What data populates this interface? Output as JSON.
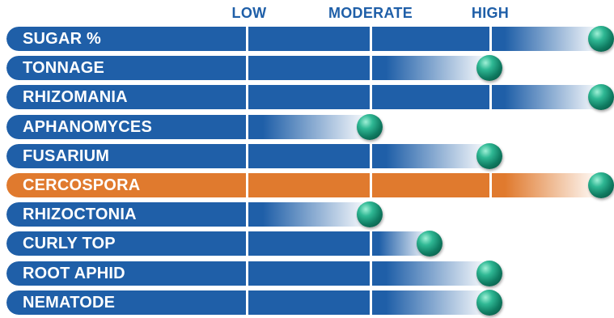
{
  "chart_data": {
    "type": "bar",
    "orientation": "horizontal",
    "x_ticks": [
      "LOW",
      "MODERATE",
      "HIGH"
    ],
    "categories": [
      "SUGAR %",
      "TONNAGE",
      "RHIZOMANIA",
      "APHANOMYCES",
      "FUSARIUM",
      "CERCOSPORA",
      "RHIZOCTONIA",
      "CURLY TOP",
      "ROOT APHID",
      "NEMATODE"
    ],
    "values": [
      4,
      3,
      4,
      2,
      3,
      4,
      2,
      2.5,
      3,
      3
    ],
    "scale": {
      "min": 1,
      "max": 4,
      "levels": [
        "LOW",
        "MODERATE",
        "HIGH"
      ]
    },
    "highlight_category": "CERCOSPORA",
    "grid": true,
    "legend": "none"
  },
  "colors": {
    "bar_dark": "#1f5fa8",
    "bar_fade": "#ffffff",
    "highlight": "#e07a2e",
    "header_text": "#1f5fa8",
    "marker": "#1d9a7c"
  },
  "marker_icon": "teal-sphere-icon"
}
